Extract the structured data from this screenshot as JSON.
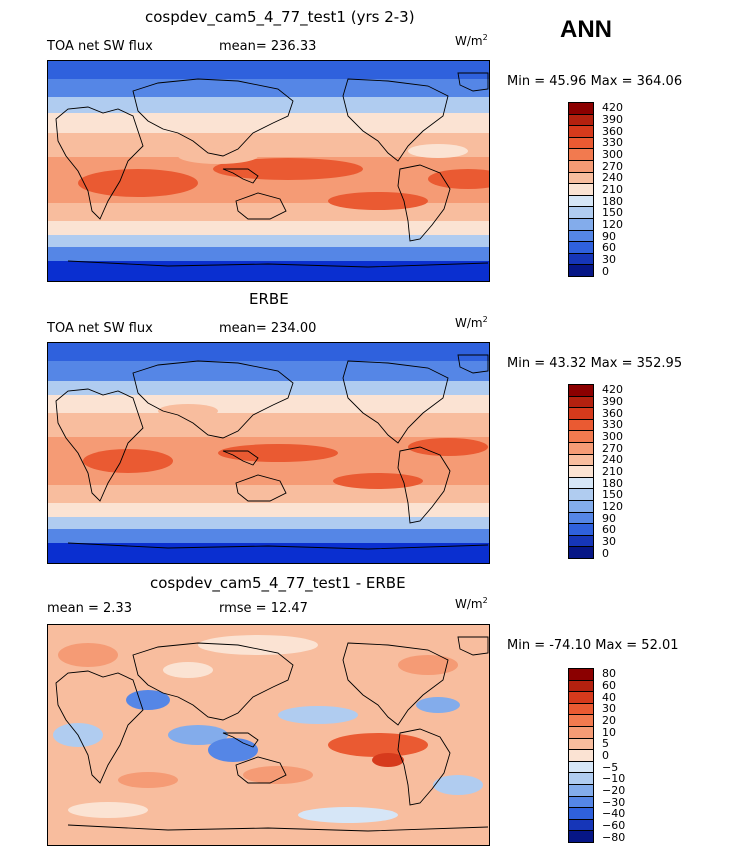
{
  "season": "ANN",
  "panels": [
    {
      "title": "cospdev_cam5_4_77_test1 (yrs 2-3)",
      "left_label": "TOA net SW flux",
      "stat_label": "mean= 236.33",
      "unit": "W/m",
      "unit_exp": "2",
      "minmax": "Min =  45.96 Max = 364.06",
      "type": "abs",
      "stats": {
        "mean": 236.33,
        "min": 45.96,
        "max": 364.06
      }
    },
    {
      "title": "ERBE",
      "left_label": "TOA net SW flux",
      "stat_label": "mean= 234.00",
      "unit": "W/m",
      "unit_exp": "2",
      "minmax": "Min =  43.32 Max = 352.95",
      "type": "abs",
      "stats": {
        "mean": 234.0,
        "min": 43.32,
        "max": 352.95
      }
    },
    {
      "title": "cospdev_cam5_4_77_test1 - ERBE",
      "left_label": "mean =   2.33",
      "stat_label": "rmse =  12.47",
      "unit": "W/m",
      "unit_exp": "2",
      "minmax": "Min = -74.10 Max =  52.01",
      "type": "diff",
      "stats": {
        "mean": 2.33,
        "rmse": 12.47,
        "min": -74.1,
        "max": 52.01
      }
    }
  ],
  "colorbars": {
    "abs": {
      "levels": [
        "420",
        "390",
        "360",
        "330",
        "300",
        "270",
        "240",
        "210",
        "180",
        "150",
        "120",
        "90",
        "60",
        "30",
        "0"
      ],
      "colors": [
        "#8b0000",
        "#b3210f",
        "#d63a1c",
        "#ea5a32",
        "#f27a4f",
        "#f59b75",
        "#f8bd9e",
        "#fbe3d3",
        "#d6e6f7",
        "#b0ccf0",
        "#83aceb",
        "#5586e6",
        "#2f61dd",
        "#1636b8",
        "#061686"
      ]
    },
    "diff": {
      "levels": [
        "80",
        "60",
        "40",
        "30",
        "20",
        "10",
        "5",
        "0",
        "−5",
        "−10",
        "−20",
        "−30",
        "−40",
        "−60",
        "−80"
      ],
      "colors": [
        "#8b0000",
        "#b3210f",
        "#d63a1c",
        "#ea5a32",
        "#f27a4f",
        "#f59b75",
        "#f8bd9e",
        "#fbe3d3",
        "#d6e6f7",
        "#b0ccf0",
        "#83aceb",
        "#5586e6",
        "#2f61dd",
        "#1636b8",
        "#061686"
      ]
    }
  },
  "palette": {
    "deep_blue": "#0a2fd0",
    "blue": "#2f61dd",
    "mid_blue": "#5586e6",
    "light_blue": "#b0ccf0",
    "pale": "#fbe3d3",
    "peach": "#f8bd9e",
    "salmon": "#f59b75",
    "orange": "#ea5a32",
    "red": "#d63a1c",
    "coast": "#000000"
  }
}
